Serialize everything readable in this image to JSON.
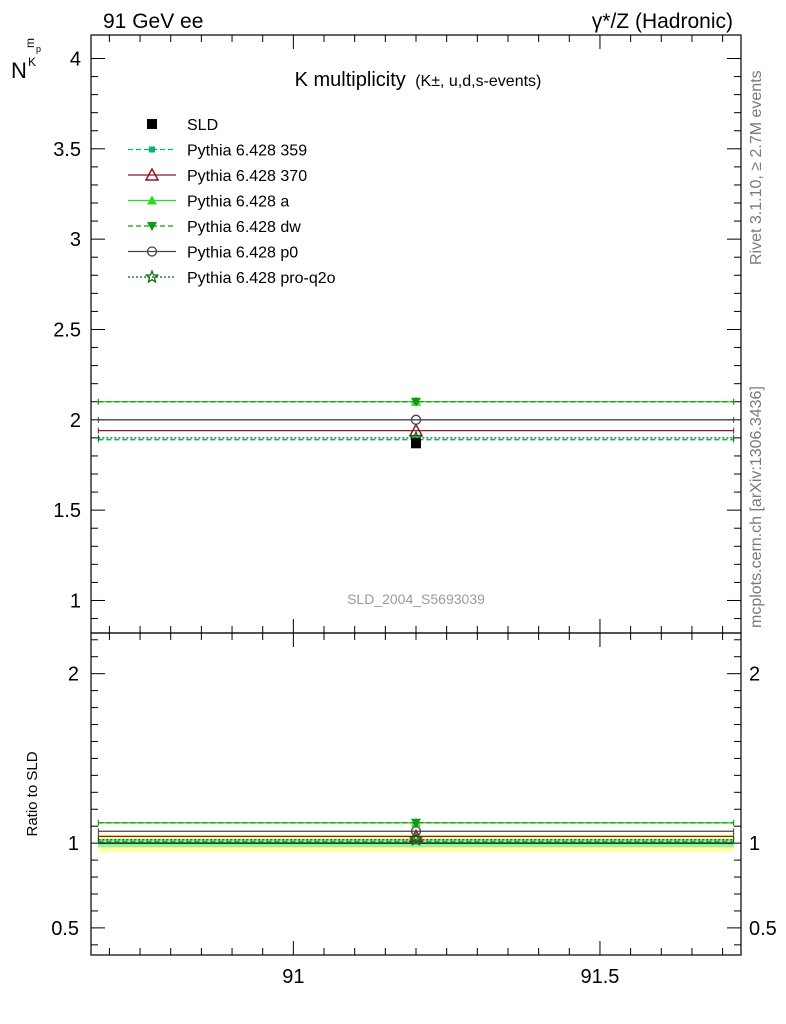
{
  "header": {
    "left": "91 GeV ee",
    "right": "γ*/Z (Hadronic)"
  },
  "side_labels": {
    "rivet": "Rivet 3.1.10, ≥ 2.7M events",
    "mcplots": "mcplots.cern.ch [arXiv:1306.3436]"
  },
  "chart_data": [
    {
      "type": "line",
      "panel": "main",
      "title_main": "K multiplicity",
      "title_sub": "(K±, u,d,s-events)",
      "ylabel_main": "N",
      "ylabel_sub": "K",
      "ylabel_sup": "p",
      "ylabel_tail": "m",
      "watermark": "SLD_2004_S5693039",
      "xlim": [
        90.67,
        91.73
      ],
      "ylim": [
        0.82,
        4.13
      ],
      "yticks": [
        1,
        1.5,
        2,
        2.5,
        3,
        3.5,
        4
      ],
      "ytick_labels": [
        "1",
        "1.5",
        "2",
        "2.5",
        "3",
        "3.5",
        "4"
      ],
      "legend_position": "top-left",
      "data_point": {
        "name": "SLD",
        "x": 91.2,
        "y": 1.87,
        "color": "#000000"
      },
      "series": [
        {
          "name": "Pythia 6.428 359",
          "y": 1.89,
          "color": "#00b377",
          "dash": "5,3",
          "marker": "square-small"
        },
        {
          "name": "Pythia 6.428 370",
          "y": 1.94,
          "color": "#8b1a2b",
          "dash": "",
          "marker": "triangle-open"
        },
        {
          "name": "Pythia 6.428 a",
          "y": 2.1,
          "color": "#22dd22",
          "dash": "",
          "marker": "triangle"
        },
        {
          "name": "Pythia 6.428 dw",
          "y": 2.1,
          "color": "#119911",
          "dash": "5,3",
          "marker": "triangle-down"
        },
        {
          "name": "Pythia 6.428 p0",
          "y": 2.0,
          "color": "#444444",
          "dash": "",
          "marker": "circle-open"
        },
        {
          "name": "Pythia 6.428 pro-q2o",
          "y": 1.9,
          "color": "#006600",
          "dash": "2,2",
          "marker": "star-open"
        }
      ]
    },
    {
      "type": "line",
      "panel": "ratio",
      "ylabel": "Ratio to SLD",
      "xlim": [
        90.67,
        91.73
      ],
      "ylim": [
        0.34,
        2.24
      ],
      "xticks": [
        91,
        91.5
      ],
      "xtick_labels": [
        "91",
        "91.5"
      ],
      "yticks": [
        0.5,
        1,
        2
      ],
      "ytick_labels": [
        "0.5",
        "1",
        "2"
      ],
      "uncertainty_bands": [
        {
          "low": 0.95,
          "high": 1.05,
          "color": "#ffff99"
        },
        {
          "low": 0.975,
          "high": 1.025,
          "color": "#99ee99"
        }
      ],
      "series": [
        {
          "name": "Pythia 6.428 359",
          "y": 1.01
        },
        {
          "name": "Pythia 6.428 370",
          "y": 1.04
        },
        {
          "name": "Pythia 6.428 a",
          "y": 1.12
        },
        {
          "name": "Pythia 6.428 dw",
          "y": 1.12
        },
        {
          "name": "Pythia 6.428 p0",
          "y": 1.07
        },
        {
          "name": "Pythia 6.428 pro-q2o",
          "y": 1.02
        }
      ]
    }
  ]
}
